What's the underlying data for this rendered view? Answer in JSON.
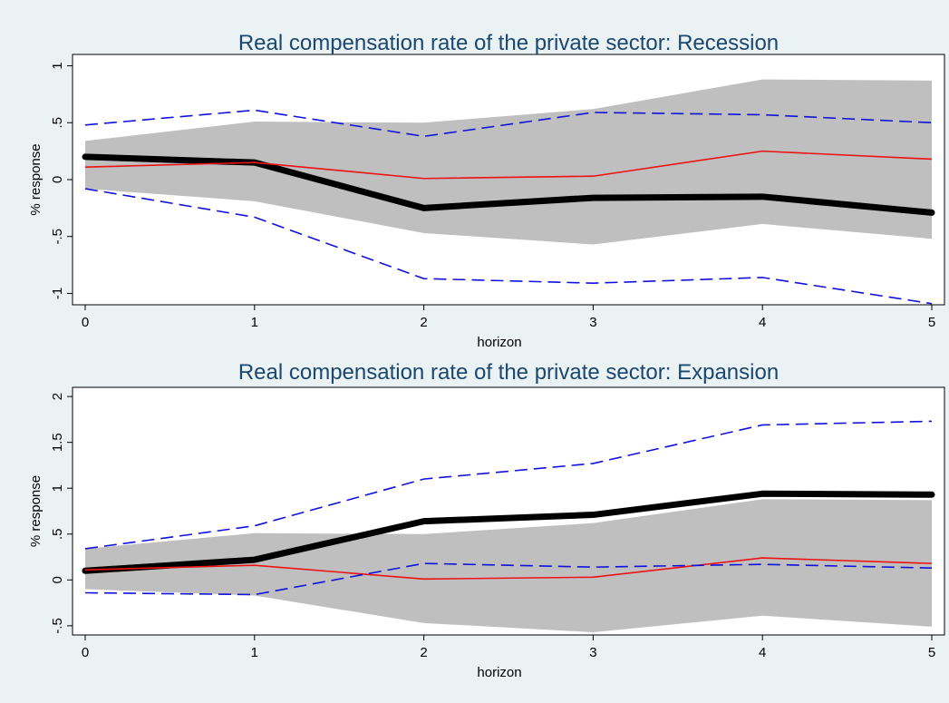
{
  "colors": {
    "background": "#eaf2f3",
    "plot_background": "#ffffff",
    "band": "#bfbfbf",
    "bold_line": "#000000",
    "red_line": "#ee1111",
    "blue_dashed": "#1111dd",
    "title": "#1a476f"
  },
  "chart_data": [
    {
      "type": "line",
      "title": "Real compensation rate of the private sector: Recession",
      "xlabel": "horizon",
      "ylabel": "% response",
      "xlim": [
        0,
        5
      ],
      "ylim": [
        -1.1,
        1.1
      ],
      "x": [
        0,
        1,
        2,
        3,
        4,
        5
      ],
      "x_ticks": [
        "0",
        "1",
        "2",
        "3",
        "4",
        "5"
      ],
      "y_tick_values": [
        1,
        0.5,
        0,
        -0.5,
        -1
      ],
      "y_tick_labels": [
        "1",
        ".5",
        "0",
        "-.5",
        "-1"
      ],
      "grid": false,
      "band": {
        "upper": [
          0.34,
          0.51,
          0.5,
          0.62,
          0.88,
          0.87
        ],
        "lower": [
          -0.08,
          -0.19,
          -0.47,
          -0.57,
          -0.39,
          -0.52
        ]
      },
      "series": [
        {
          "style": "bold",
          "values": [
            0.2,
            0.15,
            -0.25,
            -0.16,
            -0.15,
            -0.29
          ]
        },
        {
          "style": "red",
          "values": [
            0.11,
            0.15,
            0.01,
            0.03,
            0.25,
            0.18
          ]
        },
        {
          "style": "dashed",
          "values": [
            0.48,
            0.61,
            0.38,
            0.59,
            0.57,
            0.5
          ]
        },
        {
          "style": "dashed",
          "values": [
            -0.08,
            -0.33,
            -0.87,
            -0.91,
            -0.86,
            -1.09
          ]
        }
      ]
    },
    {
      "type": "line",
      "title": "Real compensation rate of the private sector: Expansion",
      "xlabel": "horizon",
      "ylabel": "% response",
      "xlim": [
        0,
        5
      ],
      "ylim": [
        -0.6,
        2.1
      ],
      "x": [
        0,
        1,
        2,
        3,
        4,
        5
      ],
      "x_ticks": [
        "0",
        "1",
        "2",
        "3",
        "4",
        "5"
      ],
      "y_tick_values": [
        2,
        1.5,
        1,
        0.5,
        0,
        -0.5
      ],
      "y_tick_labels": [
        "2",
        "1.5",
        "1",
        ".5",
        "0",
        "-.5"
      ],
      "grid": false,
      "band": {
        "upper": [
          0.34,
          0.51,
          0.5,
          0.62,
          0.88,
          0.87
        ],
        "lower": [
          -0.1,
          -0.17,
          -0.47,
          -0.57,
          -0.39,
          -0.51
        ]
      },
      "series": [
        {
          "style": "bold",
          "values": [
            0.1,
            0.22,
            0.64,
            0.71,
            0.94,
            0.93
          ]
        },
        {
          "style": "red",
          "values": [
            0.11,
            0.16,
            0.01,
            0.03,
            0.24,
            0.18
          ]
        },
        {
          "style": "dashed",
          "values": [
            0.34,
            0.59,
            1.1,
            1.27,
            1.69,
            1.73
          ]
        },
        {
          "style": "dashed",
          "values": [
            -0.14,
            -0.16,
            0.18,
            0.14,
            0.17,
            0.13
          ]
        }
      ]
    }
  ]
}
